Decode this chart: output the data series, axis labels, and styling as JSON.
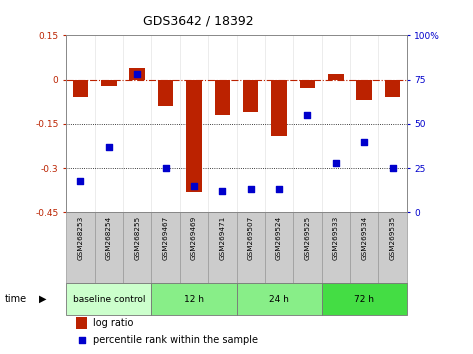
{
  "title": "GDS3642 / 18392",
  "samples": [
    "GSM268253",
    "GSM268254",
    "GSM268255",
    "GSM269467",
    "GSM269469",
    "GSM269471",
    "GSM269507",
    "GSM269524",
    "GSM269525",
    "GSM269533",
    "GSM269534",
    "GSM269535"
  ],
  "log_ratio": [
    -0.06,
    -0.02,
    0.04,
    -0.09,
    -0.38,
    -0.12,
    -0.11,
    -0.19,
    -0.03,
    0.02,
    -0.07,
    -0.06
  ],
  "percentile_rank": [
    18,
    37,
    78,
    25,
    15,
    12,
    13,
    13,
    55,
    28,
    40,
    25
  ],
  "bar_color": "#bb2200",
  "dot_color": "#0000cc",
  "ylim_left": [
    -0.45,
    0.15
  ],
  "ylim_right": [
    0,
    100
  ],
  "yticks_left": [
    0.15,
    0.0,
    -0.15,
    -0.3,
    -0.45
  ],
  "ytick_labels_left": [
    "0.15",
    "0",
    "-0.15",
    "-0.3",
    "-0.45"
  ],
  "yticks_right": [
    100,
    75,
    50,
    25,
    0
  ],
  "ytick_labels_right": [
    "100%",
    "75",
    "50",
    "25",
    "0"
  ],
  "hline_y": 0.0,
  "dotted_lines": [
    -0.15,
    -0.3
  ],
  "time_groups": [
    {
      "label": "baseline control",
      "start": 0,
      "end": 3,
      "color": "#ccffcc"
    },
    {
      "label": "12 h",
      "start": 3,
      "end": 6,
      "color": "#88ee88"
    },
    {
      "label": "24 h",
      "start": 6,
      "end": 9,
      "color": "#88ee88"
    },
    {
      "label": "72 h",
      "start": 9,
      "end": 12,
      "color": "#44dd44"
    }
  ],
  "legend_log_ratio": "log ratio",
  "legend_percentile": "percentile rank within the sample",
  "time_label": "time",
  "background_color": "#ffffff",
  "label_bg_color": "#cccccc",
  "label_border_color": "#999999"
}
